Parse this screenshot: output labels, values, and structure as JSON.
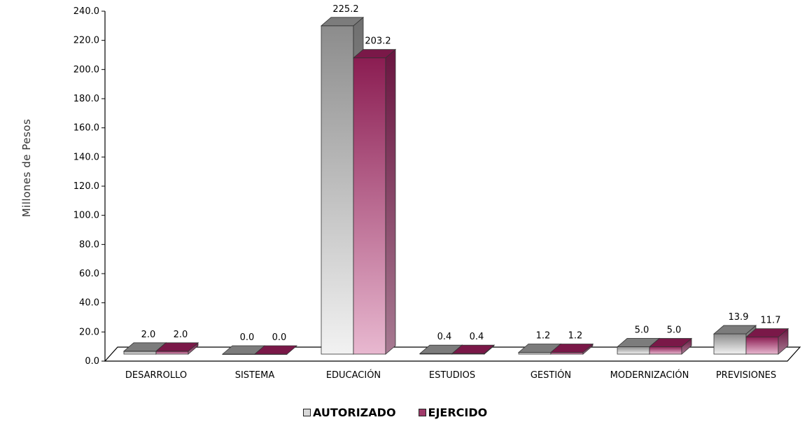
{
  "chart_data": {
    "type": "bar",
    "ylabel": "Millones de Pesos",
    "xlabel": "",
    "ylim": [
      0,
      240
    ],
    "ytick_step": 20,
    "categories": [
      "DESARROLLO",
      "SISTEMA",
      "EDUCACIÓN",
      "ESTUDIOS",
      "GESTIÓN",
      "MODERNIZACIÓN",
      "PREVISIONES"
    ],
    "series": [
      {
        "name": "AUTORIZADO",
        "values": [
          2.0,
          0.0,
          225.2,
          0.4,
          1.2,
          5.0,
          13.9
        ],
        "color": "#9a9a9a"
      },
      {
        "name": "EJERCIDO",
        "values": [
          2.0,
          0.0,
          203.2,
          0.4,
          1.2,
          5.0,
          11.7
        ],
        "color": "#8e2457"
      }
    ],
    "grid": false,
    "legend_position": "bottom",
    "style": "3d-bar"
  }
}
